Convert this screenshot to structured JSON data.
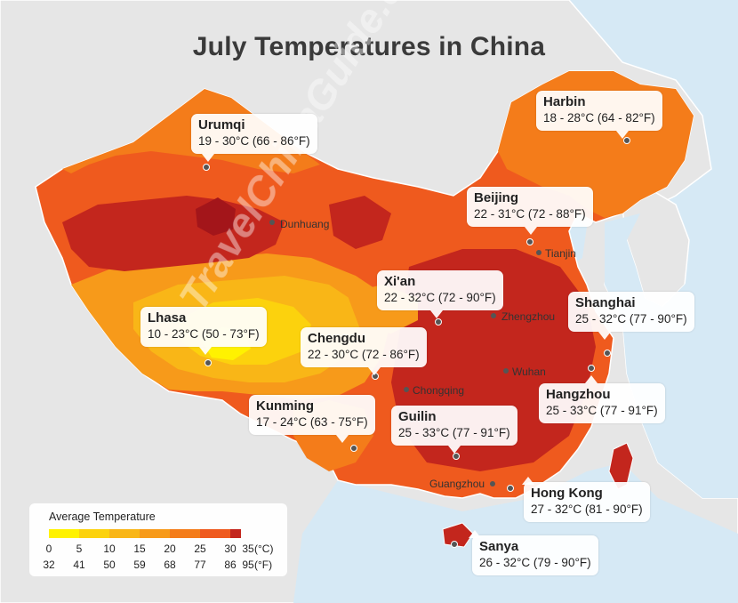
{
  "title": "July Temperatures in China",
  "watermark": "TravelChinaGuide.com",
  "colors": {
    "sea": "#d6e9f5",
    "land_other": "#e6e6e6",
    "c0_5": "#fff200",
    "c5_10": "#fcd20d",
    "c10_15": "#f9b617",
    "c15_20": "#f79a1a",
    "c20_25": "#f47c1a",
    "c25_30": "#ef5a1e",
    "c30_35": "#c3261d"
  },
  "callouts": [
    {
      "city": "Urumqi",
      "temp": "19 - 30°C (66 - 86°F)"
    },
    {
      "city": "Harbin",
      "temp": "18 - 28°C (64 - 82°F)"
    },
    {
      "city": "Beijing",
      "temp": "22 - 31°C (72 - 88°F)"
    },
    {
      "city": "Xi'an",
      "temp": "22 - 32°C (72 - 90°F)"
    },
    {
      "city": "Lhasa",
      "temp": "10 - 23°C (50 - 73°F)"
    },
    {
      "city": "Chengdu",
      "temp": "22 - 30°C (72 - 86°F)"
    },
    {
      "city": "Shanghai",
      "temp": "25 - 32°C (77 - 90°F)"
    },
    {
      "city": "Hangzhou",
      "temp": "25 - 33°C (77 - 91°F)"
    },
    {
      "city": "Kunming",
      "temp": "17 - 24°C (63 - 75°F)"
    },
    {
      "city": "Guilin",
      "temp": "25 - 33°C (77 - 91°F)"
    },
    {
      "city": "Hong Kong",
      "temp": "27 - 32°C (81 - 90°F)"
    },
    {
      "city": "Sanya",
      "temp": "26 - 32°C (79 - 90°F)"
    }
  ],
  "small_cities": [
    "Dunhuang",
    "Tianjin",
    "Zhengzhou",
    "Wuhan",
    "Chongqing",
    "Guangzhou"
  ],
  "legend": {
    "title": "Average Temperature",
    "celsius": [
      "0",
      "5",
      "10",
      "15",
      "20",
      "25",
      "30",
      "35"
    ],
    "fahrenheit": [
      "32",
      "41",
      "50",
      "59",
      "68",
      "77",
      "86",
      "95"
    ],
    "unit_c": "(°C)",
    "unit_f": "(°F)"
  }
}
